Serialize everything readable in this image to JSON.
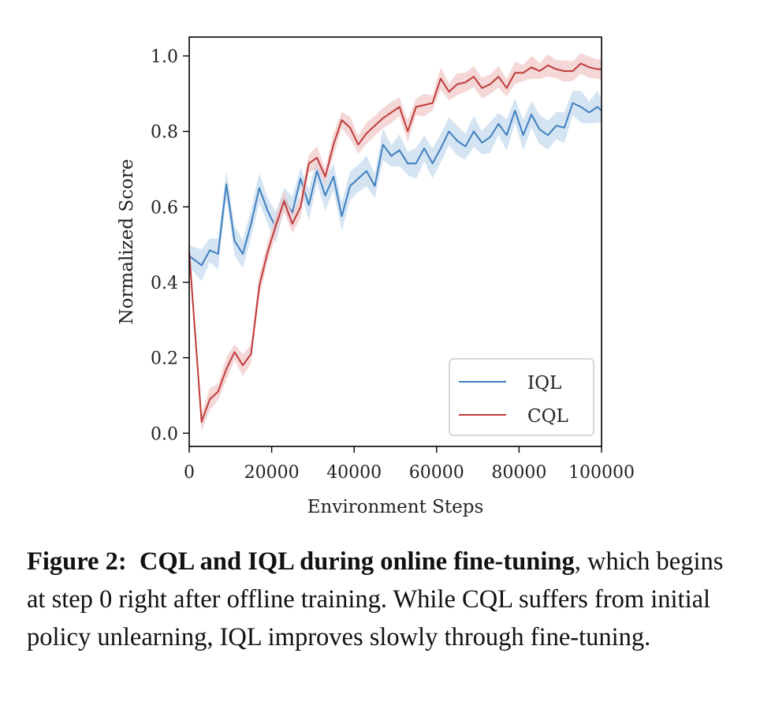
{
  "chart_data": {
    "type": "line",
    "title": "",
    "xlabel": "Environment Steps",
    "ylabel": "Normalized Score",
    "xlim": [
      0,
      100000
    ],
    "ylim": [
      -0.035,
      1.05
    ],
    "xticks": [
      0,
      20000,
      40000,
      60000,
      80000,
      100000
    ],
    "xtick_labels": [
      "0",
      "20000",
      "40000",
      "60000",
      "80000",
      "100000"
    ],
    "yticks": [
      0.0,
      0.2,
      0.4,
      0.6,
      0.8,
      1.0
    ],
    "ytick_labels": [
      "0.0",
      "0.2",
      "0.4",
      "0.6",
      "0.8",
      "1.0"
    ],
    "grid": false,
    "legend_position": "lower-right",
    "x": [
      0,
      3000,
      5000,
      7000,
      9000,
      11000,
      13000,
      15000,
      17000,
      19000,
      21000,
      23000,
      25000,
      27000,
      29000,
      31000,
      33000,
      35000,
      37000,
      39000,
      41000,
      43000,
      45000,
      47000,
      49000,
      51000,
      53000,
      55000,
      57000,
      59000,
      61000,
      63000,
      65000,
      67000,
      69000,
      71000,
      73000,
      75000,
      77000,
      79000,
      81000,
      83000,
      85000,
      87000,
      89000,
      91000,
      93000,
      95000,
      97000,
      99000,
      100000
    ],
    "series": [
      {
        "name": "IQL",
        "color": "#3f7fbf",
        "band_color": "#c6dbef",
        "values": [
          0.47,
          0.445,
          0.485,
          0.475,
          0.66,
          0.51,
          0.475,
          0.555,
          0.65,
          0.59,
          0.545,
          0.62,
          0.585,
          0.675,
          0.605,
          0.695,
          0.63,
          0.68,
          0.575,
          0.655,
          0.675,
          0.695,
          0.655,
          0.765,
          0.735,
          0.75,
          0.715,
          0.715,
          0.755,
          0.715,
          0.755,
          0.8,
          0.775,
          0.76,
          0.8,
          0.77,
          0.785,
          0.82,
          0.79,
          0.855,
          0.79,
          0.845,
          0.805,
          0.79,
          0.815,
          0.81,
          0.875,
          0.865,
          0.85,
          0.865,
          0.855
        ],
        "spread": 0.035
      },
      {
        "name": "CQL",
        "color": "#bf3b3b",
        "band_color": "#f2c9c9",
        "values": [
          0.48,
          0.03,
          0.09,
          0.11,
          0.17,
          0.215,
          0.18,
          0.21,
          0.39,
          0.48,
          0.55,
          0.615,
          0.555,
          0.6,
          0.715,
          0.73,
          0.68,
          0.765,
          0.83,
          0.81,
          0.765,
          0.795,
          0.815,
          0.835,
          0.85,
          0.865,
          0.8,
          0.865,
          0.87,
          0.875,
          0.94,
          0.905,
          0.925,
          0.93,
          0.945,
          0.915,
          0.925,
          0.945,
          0.915,
          0.955,
          0.955,
          0.97,
          0.96,
          0.975,
          0.965,
          0.96,
          0.96,
          0.98,
          0.97,
          0.965,
          0.965
        ],
        "spread": 0.025
      }
    ]
  },
  "caption": {
    "label": "Figure 2:",
    "title": "CQL and IQL during online fine-tuning",
    "body": ", which begins at step 0 right after offline training. While CQL suffers from initial policy unlearning, IQL improves slowly through fine-tuning."
  }
}
